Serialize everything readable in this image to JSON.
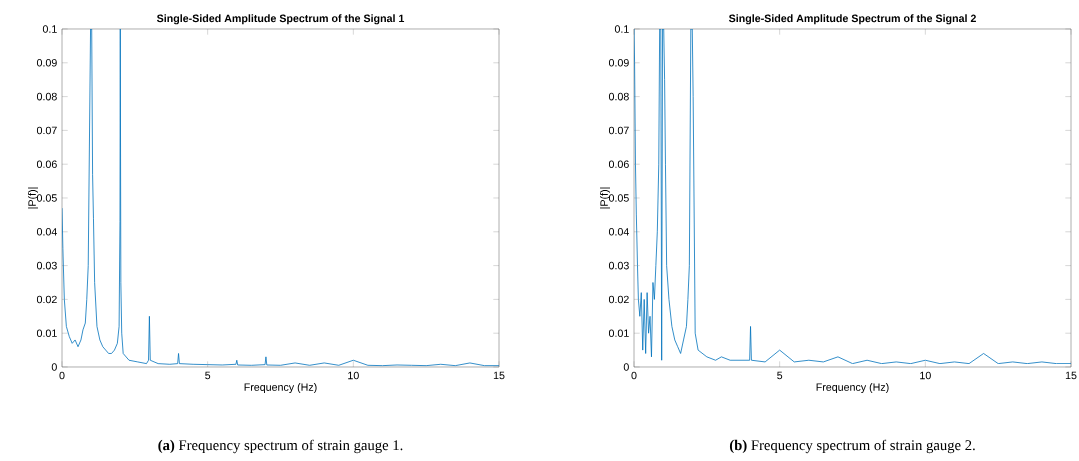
{
  "chart_data": [
    {
      "type": "line",
      "title": "Single-Sided Amplitude Spectrum of the Signal 1",
      "xlabel": "Frequency (Hz)",
      "ylabel": "|P(f)|",
      "color": "#0072bd",
      "x": [
        0,
        0.03,
        0.08,
        0.15,
        0.25,
        0.35,
        0.45,
        0.55,
        0.65,
        0.72,
        0.8,
        0.85,
        0.9,
        0.98,
        1.0,
        1.02,
        1.05,
        1.08,
        1.12,
        1.2,
        1.3,
        1.4,
        1.5,
        1.6,
        1.7,
        1.8,
        1.9,
        1.96,
        1.99,
        2.0,
        2.02,
        2.05,
        2.1,
        2.3,
        2.6,
        2.9,
        2.97,
        3.0,
        3.03,
        3.3,
        3.7,
        3.97,
        4.0,
        4.03,
        4.5,
        5,
        5.5,
        5.97,
        6.0,
        6.03,
        6.5,
        6.97,
        7.0,
        7.03,
        7.5,
        8.0,
        8.5,
        9.0,
        9.5,
        10.0,
        10.5,
        11,
        11.5,
        12,
        12.5,
        13,
        13.5,
        14,
        14.5,
        15
      ],
      "values": [
        0.047,
        0.035,
        0.02,
        0.012,
        0.009,
        0.007,
        0.008,
        0.006,
        0.008,
        0.011,
        0.013,
        0.02,
        0.03,
        0.1,
        0.1,
        0.1,
        0.057,
        0.044,
        0.025,
        0.012,
        0.008,
        0.006,
        0.005,
        0.004,
        0.004,
        0.005,
        0.007,
        0.012,
        0.043,
        0.1,
        0.025,
        0.01,
        0.004,
        0.002,
        0.0015,
        0.001,
        0.002,
        0.015,
        0.002,
        0.001,
        0.0008,
        0.001,
        0.004,
        0.001,
        0.0008,
        0.0007,
        0.0006,
        0.0008,
        0.002,
        0.0006,
        0.0005,
        0.0007,
        0.003,
        0.0006,
        0.0005,
        0.0012,
        0.0005,
        0.0012,
        0.0005,
        0.002,
        0.0005,
        0.0004,
        0.0006,
        0.0005,
        0.0004,
        0.0008,
        0.0004,
        0.0012,
        0.0004,
        0.0004
      ],
      "xlim": [
        0,
        15
      ],
      "ylim": [
        0,
        0.1
      ],
      "xticks": [
        0,
        5,
        10,
        15
      ],
      "yticks": [
        0,
        0.01,
        0.02,
        0.03,
        0.04,
        0.05,
        0.06,
        0.07,
        0.08,
        0.09,
        0.1
      ],
      "annotations": [
        "**(a)** Frequency spectrum of strain gauge 1."
      ]
    },
    {
      "type": "line",
      "title": "Single-Sided Amplitude Spectrum of the Signal 2",
      "xlabel": "Frequency (Hz)",
      "ylabel": "|P(f)|",
      "color": "#0072bd",
      "x": [
        0,
        0.02,
        0.05,
        0.08,
        0.12,
        0.15,
        0.2,
        0.25,
        0.3,
        0.35,
        0.4,
        0.45,
        0.5,
        0.55,
        0.6,
        0.65,
        0.7,
        0.75,
        0.8,
        0.85,
        0.88,
        0.92,
        0.95,
        0.98,
        1.02,
        1.05,
        1.08,
        1.12,
        1.2,
        1.3,
        1.4,
        1.5,
        1.6,
        1.7,
        1.8,
        1.85,
        1.9,
        1.95,
        2.0,
        2.03,
        2.1,
        2.2,
        2.5,
        2.8,
        3.0,
        3.3,
        3.6,
        3.97,
        4.0,
        4.03,
        4.5,
        5,
        5.5,
        6,
        6.5,
        7,
        7.5,
        8,
        8.5,
        9,
        9.5,
        10,
        10.5,
        11,
        11.5,
        12,
        12.5,
        13,
        13.5,
        14,
        14.5,
        15
      ],
      "values": [
        0.1,
        0.09,
        0.06,
        0.045,
        0.03,
        0.02,
        0.015,
        0.022,
        0.005,
        0.02,
        0.004,
        0.022,
        0.01,
        0.015,
        0.003,
        0.025,
        0.02,
        0.03,
        0.04,
        0.06,
        0.1,
        0.1,
        0.002,
        0.1,
        0.1,
        0.085,
        0.06,
        0.03,
        0.02,
        0.012,
        0.008,
        0.006,
        0.004,
        0.008,
        0.012,
        0.02,
        0.03,
        0.1,
        0.1,
        0.08,
        0.01,
        0.005,
        0.003,
        0.002,
        0.003,
        0.002,
        0.002,
        0.002,
        0.012,
        0.002,
        0.0015,
        0.005,
        0.0015,
        0.002,
        0.0015,
        0.003,
        0.001,
        0.002,
        0.001,
        0.0015,
        0.001,
        0.002,
        0.001,
        0.0015,
        0.001,
        0.004,
        0.001,
        0.0015,
        0.001,
        0.0015,
        0.001,
        0.001
      ],
      "xlim": [
        0,
        15
      ],
      "ylim": [
        0,
        0.1
      ],
      "xticks": [
        0,
        5,
        10,
        15
      ],
      "yticks": [
        0,
        0.01,
        0.02,
        0.03,
        0.04,
        0.05,
        0.06,
        0.07,
        0.08,
        0.09,
        0.1
      ],
      "annotations": [
        "**(b)** Frequency spectrum of strain gauge 2."
      ]
    }
  ]
}
